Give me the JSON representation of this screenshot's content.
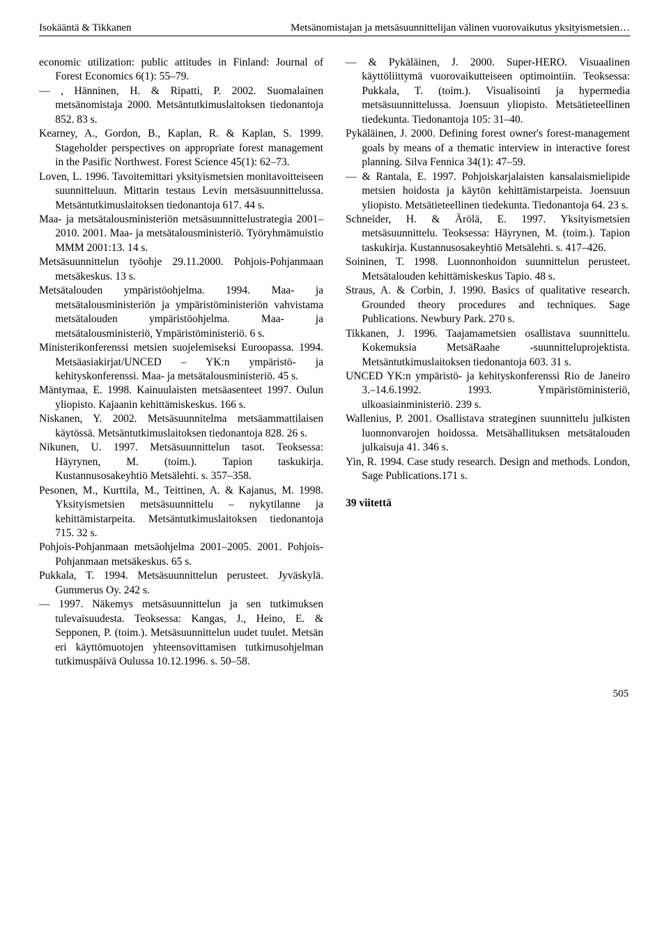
{
  "running_head": {
    "left": "Isokääntä & Tikkanen",
    "right": "Metsänomistajan ja metsäsuunnittelijan välinen vuorovaikutus yksityismetsien…"
  },
  "left_column": [
    "economic utilization: public attitudes in Finland: Journal of Forest Economics 6(1): 55–79.",
    "— , Hänninen, H. & Ripatti, P. 2002. Suomalainen metsänomistaja 2000. Metsäntutkimuslaitoksen tiedonantoja 852. 83 s.",
    "Kearney, A., Gordon, B., Kaplan, R. & Kaplan, S. 1999. Stageholder perspectives on appropriate forest management in the Pasific Northwest. Forest Science 45(1): 62–73.",
    "Loven, L. 1996. Tavoitemittari yksityismetsien monitavoitteiseen suunnitteluun. Mittarin testaus Levin metsäsuunnittelussa. Metsäntutkimuslaitoksen tiedonantoja 617. 44 s.",
    "Maa- ja metsätalousministeriön metsäsuunnittelustrategia 2001–2010. 2001. Maa- ja metsätalousministeriö. Työryhmämuistio MMM 2001:13. 14 s.",
    "Metsäsuunnittelun työohje 29.11.2000. Pohjois-Pohjanmaan metsäkeskus. 13 s.",
    "Metsätalouden ympäristöohjelma. 1994. Maa- ja metsätalousministeriön ja ympäristöministeriön vahvistama metsätalouden ympäristöohjelma. Maa- ja metsätalousministeriö, Ympäristöministeriö. 6 s.",
    "Ministerikonferenssi metsien suojelemiseksi Euroopassa. 1994. Metsäasiakirjat/UNCED – YK:n ympäristö- ja kehityskonferenssi. Maa- ja metsätalousministeriö. 45 s.",
    "Mäntymaa, E. 1998. Kainuulaisten metsäasenteet 1997. Oulun yliopisto. Kajaanin kehittämiskeskus. 166 s.",
    "Niskanen, Y. 2002. Metsäsuunnitelma metsäammattilaisen käytössä. Metsäntutkimuslaitoksen tiedonantoja 828. 26 s.",
    "Nikunen, U. 1997. Metsäsuunnittelun tasot. Teoksessa: Häyrynen, M. (toim.). Tapion taskukirja. Kustannusosakeyhtiö Metsälehti. s. 357–358.",
    "Pesonen, M., Kurttila, M., Teittinen, A. & Kajanus, M. 1998. Yksityismetsien metsäsuunnittelu – nykytilanne ja kehittämistarpeita. Metsäntutkimuslaitoksen tiedonantoja 715. 32 s.",
    "Pohjois-Pohjanmaan metsäohjelma 2001–2005. 2001. Pohjois-Pohjanmaan metsäkeskus. 65 s.",
    "Pukkala, T. 1994. Metsäsuunnittelun perusteet. Jyväskylä. Gummerus Oy. 242 s.",
    "— 1997. Näkemys metsäsuunnittelun ja sen tutkimuksen tulevaisuudesta. Teoksessa: Kangas, J., Heino, E. & Sepponen, P. (toim.). Metsäsuunnittelun uudet tuulet. Metsän eri käyttömuotojen yhteensovittamisen tutkimusohjelman tutkimuspäivä Oulussa 10.12.1996. s. 50–58."
  ],
  "right_column": [
    "— & Pykäläinen, J. 2000. Super-HERO. Visuaalinen käyttöliittymä vuorovaikutteiseen optimointiin. Teoksessa: Pukkala, T. (toim.). Visualisointi ja hypermedia metsäsuunnittelussa. Joensuun yliopisto. Metsätieteellinen tiedekunta. Tiedonantoja 105: 31–40.",
    "Pykäläinen, J. 2000. Defining forest owner's forest-management goals by means of a thematic interview in interactive forest planning. Silva Fennica 34(1): 47–59.",
    "— & Rantala, E. 1997. Pohjoiskarjalaisten kansalaismielipide metsien hoidosta ja käytön kehittämistarpeista. Joensuun yliopisto. Metsätieteellinen tiedekunta. Tiedonantoja 64. 23 s.",
    "Schneider, H. & Ärölä, E. 1997. Yksityismetsien metsäsuunnittelu. Teoksessa: Häyrynen, M. (toim.). Tapion taskukirja. Kustannusosakeyhtiö Metsälehti. s. 417–426.",
    "Soininen, T. 1998. Luonnonhoidon suunnittelun perusteet. Metsätalouden kehittämiskeskus Tapio. 48 s.",
    "Straus, A. & Corbin, J. 1990. Basics of qualitative research. Grounded theory procedures and techniques. Sage Publications. Newbury Park. 270 s.",
    "Tikkanen, J. 1996. Taajamametsien osallistava suunnittelu. Kokemuksia MetsäRaahe -suunnitteluprojektista. Metsäntutkimuslaitoksen tiedonantoja 603. 31 s.",
    "UNCED YK:n ympäristö- ja kehityskonferenssi Rio de Janeiro 3.–14.6.1992. 1993. Ympäristöministeriö, ulkoasiainministeriö. 239 s.",
    "Wallenius, P. 2001. Osallistava strateginen suunnittelu julkisten luonnonvarojen hoidossa. Metsähallituksen metsätalouden julkaisuja 41. 346 s.",
    "Yin, R. 1994. Case study research. Design and methods. London, Sage Publications.171 s."
  ],
  "ref_count": "39 viitettä",
  "page_number": "505"
}
